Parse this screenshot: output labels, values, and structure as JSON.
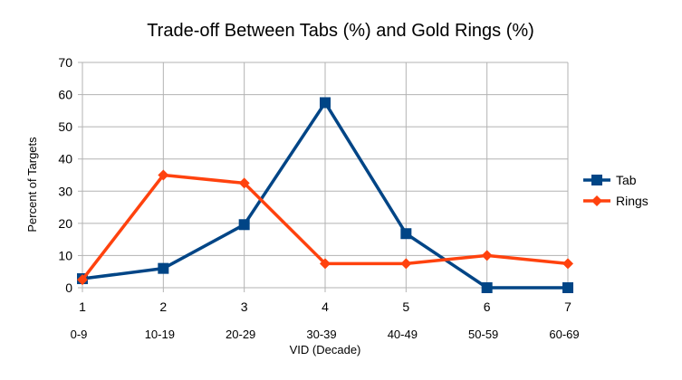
{
  "chart_data": {
    "type": "line",
    "title": "Trade-off Between Tabs (%) and Gold Rings (%)",
    "xlabel": "VID (Decade)",
    "ylabel": "Percent of Targets",
    "x": [
      1,
      2,
      3,
      4,
      5,
      6,
      7
    ],
    "category_labels": [
      "0-9",
      "10-19",
      "20-29",
      "30-39",
      "40-49",
      "50-59",
      "60-69"
    ],
    "ylim": [
      0,
      70
    ],
    "yticks": [
      0,
      10,
      20,
      30,
      40,
      50,
      60,
      70
    ],
    "grid": true,
    "legend_position": "right",
    "series": [
      {
        "name": "Tab",
        "color": "#004586",
        "marker": "square",
        "values": [
          2.8,
          6,
          19.6,
          57.5,
          16.8,
          0,
          0
        ]
      },
      {
        "name": "Rings",
        "color": "#ff420e",
        "marker": "diamond",
        "values": [
          2.5,
          35,
          32.5,
          7.5,
          7.5,
          10,
          7.5
        ]
      }
    ]
  }
}
